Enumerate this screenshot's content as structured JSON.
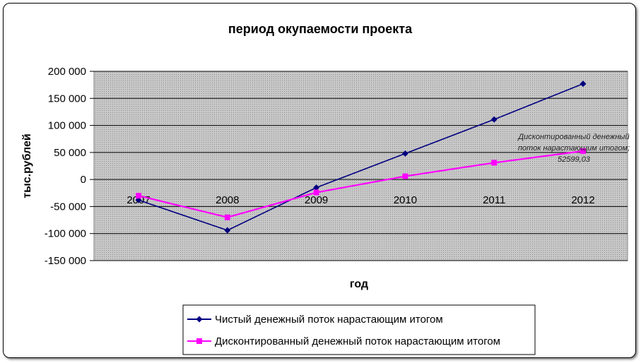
{
  "chart_data": {
    "type": "line",
    "title": "период окупаемости проекта",
    "xlabel": "год",
    "ylabel": "тыс.рублей",
    "categories": [
      "2007",
      "2008",
      "2009",
      "2010",
      "2011",
      "2012"
    ],
    "ylim": [
      -150000,
      200000
    ],
    "yticks": [
      200000,
      150000,
      100000,
      50000,
      0,
      -50000,
      -100000,
      -150000
    ],
    "ytick_labels": [
      "200 000",
      "150 000",
      "100 000",
      "50 000",
      "0",
      "-50 000",
      "-100 000",
      "-150 000"
    ],
    "grid": true,
    "legend_position": "bottom",
    "series": [
      {
        "name": "Чистый денежный поток нарастающим итогом",
        "color": "#000080",
        "marker": "diamond",
        "values": [
          -38000,
          -94000,
          -15000,
          48000,
          111000,
          177000
        ]
      },
      {
        "name": "Дисконтированный денежный поток нарастающим итогом",
        "color": "#ff00ff",
        "marker": "square",
        "values": [
          -30000,
          -70000,
          -24000,
          6000,
          31000,
          52599.03
        ]
      }
    ],
    "annotations": [
      {
        "series": 1,
        "point": 5,
        "lines": [
          "Дисконтированный денежный",
          "поток нарастающим итогом;",
          "52599,03"
        ]
      }
    ]
  }
}
